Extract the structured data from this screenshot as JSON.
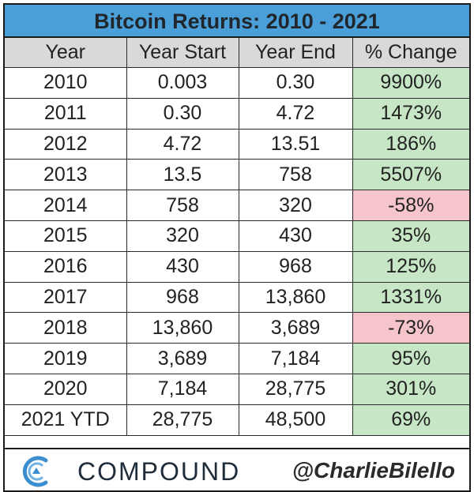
{
  "chart_data": {
    "type": "table",
    "title": "Bitcoin Returns: 2010 - 2021",
    "columns": [
      "Year",
      "Year Start",
      "Year End",
      "% Change"
    ],
    "rows": [
      {
        "year": "2010",
        "start": "0.003",
        "end": "0.30",
        "change": "9900%",
        "sign": "pos"
      },
      {
        "year": "2011",
        "start": "0.30",
        "end": "4.72",
        "change": "1473%",
        "sign": "pos"
      },
      {
        "year": "2012",
        "start": "4.72",
        "end": "13.51",
        "change": "186%",
        "sign": "pos"
      },
      {
        "year": "2013",
        "start": "13.5",
        "end": "758",
        "change": "5507%",
        "sign": "pos"
      },
      {
        "year": "2014",
        "start": "758",
        "end": "320",
        "change": "-58%",
        "sign": "neg"
      },
      {
        "year": "2015",
        "start": "320",
        "end": "430",
        "change": "35%",
        "sign": "pos"
      },
      {
        "year": "2016",
        "start": "430",
        "end": "968",
        "change": "125%",
        "sign": "pos"
      },
      {
        "year": "2017",
        "start": "968",
        "end": "13,860",
        "change": "1331%",
        "sign": "pos"
      },
      {
        "year": "2018",
        "start": "13,860",
        "end": "3,689",
        "change": "-73%",
        "sign": "neg"
      },
      {
        "year": "2019",
        "start": "3,689",
        "end": "7,184",
        "change": "95%",
        "sign": "pos"
      },
      {
        "year": "2020",
        "start": "7,184",
        "end": "28,775",
        "change": "301%",
        "sign": "pos"
      },
      {
        "year": "2021 YTD",
        "start": "28,775",
        "end": "48,500",
        "change": "69%",
        "sign": "pos"
      }
    ],
    "colors": {
      "title_bg": "#4a9fd8",
      "header_bg": "#d9d9d9",
      "positive_bg": "#c6e6c6",
      "negative_bg": "#f5c5cb"
    }
  },
  "footer": {
    "brand": "COMPOUND",
    "handle": "@CharlieBilello",
    "logo_icon": "compound-logo-icon"
  }
}
